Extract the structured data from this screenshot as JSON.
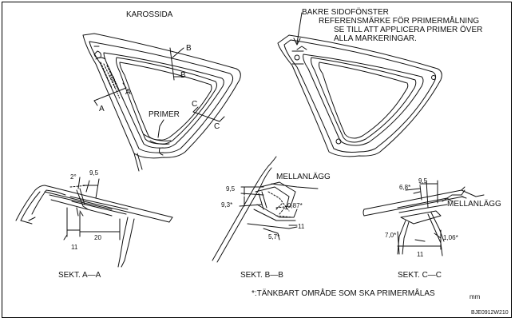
{
  "labels": {
    "karossida": "KAROSSIDA",
    "bakre_line1": "BAKRE SIDOFÖNSTER",
    "bakre_line2": "REFERENSMÄRKE FÖR PRIMERMÅLNING",
    "bakre_line3": "SE TILL ATT APPLICERA PRIMER ÖVER",
    "bakre_line4": "ALLA MARKERINGAR.",
    "primer": "PRIMER",
    "sect_a": "SEKT. A—A",
    "sect_b": "SEKT. B—B",
    "sect_c": "SEKT. C—C",
    "mellanlagg_b": "MELLANLÄGG",
    "mellanlagg_c": "MELLANLÄGG",
    "footnote": "*:TÄNKBART OMRÅDE SOM SKA PRIMERMÅLAS",
    "unit": "mm",
    "code": "BJE0912W210"
  },
  "cut_letters": {
    "a1": "A",
    "a2": "A",
    "b1": "B",
    "b2": "B",
    "c1": "C",
    "c2": "C"
  },
  "dims": {
    "a_angle": "2°",
    "a_95": "9,5",
    "a_11": "11",
    "a_20": "20",
    "b_95": "9,5",
    "b_93": "9,3*",
    "b_087": "0,87*",
    "b_11": "11",
    "b_57": "5,7*",
    "c_68": "6,8*",
    "c_95": "9,5",
    "c_70": "7,0*",
    "c_106": "1,06*",
    "c_11": "11"
  }
}
